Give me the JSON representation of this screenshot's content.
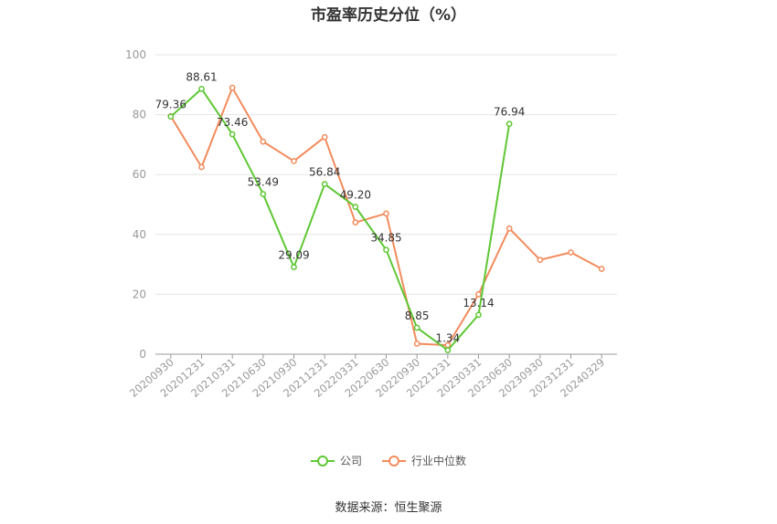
{
  "chart_data": {
    "type": "line",
    "title": "市盈率历史分位（%）",
    "categories": [
      "20200930",
      "20201231",
      "20210331",
      "20210630",
      "20210930",
      "20211231",
      "20220331",
      "20220630",
      "20220930",
      "20221231",
      "20230331",
      "20230630",
      "20230930",
      "20231231",
      "20240329"
    ],
    "ylim": [
      0,
      100
    ],
    "yticks": [
      0,
      20,
      40,
      60,
      80,
      100
    ],
    "grid": true,
    "legend_position": "bottom",
    "series": [
      {
        "name": "公司",
        "color": "#5ec734",
        "show_labels": true,
        "values": [
          79.36,
          88.61,
          73.46,
          53.49,
          29.09,
          56.84,
          49.2,
          34.85,
          8.85,
          1.34,
          13.14,
          76.94,
          null,
          null,
          null
        ],
        "labels": [
          "79.36",
          "88.61",
          "73.46",
          "53.49",
          "29.09",
          "56.84",
          "49.20",
          "34.85",
          "8.85",
          "1.34",
          "13.14",
          "76.94",
          null,
          null,
          null
        ]
      },
      {
        "name": "行业中位数",
        "color": "#f28b5c",
        "show_labels": false,
        "values": [
          79.5,
          62.5,
          89.0,
          71.0,
          64.5,
          72.5,
          44.0,
          47.0,
          3.5,
          3.0,
          20.0,
          42.0,
          31.5,
          34.0,
          28.5
        ]
      }
    ]
  },
  "source": "数据来源：恒生聚源"
}
